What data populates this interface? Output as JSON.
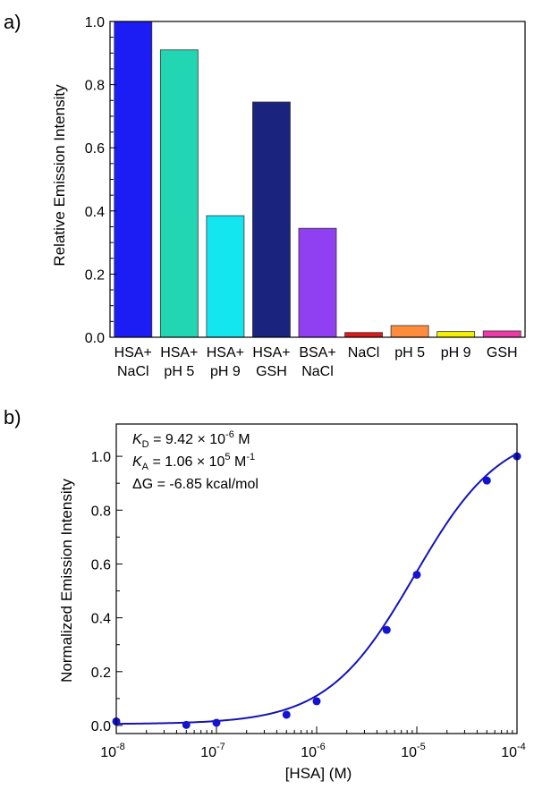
{
  "chart_data": [
    {
      "panel_label": "a)",
      "type": "bar",
      "title": "",
      "xlabel": "",
      "ylabel": "Relative Emission Intensity",
      "ylim": [
        0,
        1.0
      ],
      "yticks": [
        "0.0",
        "0.2",
        "0.4",
        "0.6",
        "0.8",
        "1.0"
      ],
      "categories": [
        [
          "HSA+",
          "NaCl"
        ],
        [
          "HSA+",
          "pH 5"
        ],
        [
          "HSA+",
          "pH 9"
        ],
        [
          "HSA+",
          "GSH"
        ],
        [
          "BSA+",
          "NaCl"
        ],
        [
          "NaCl"
        ],
        [
          "pH 5"
        ],
        [
          "pH 9"
        ],
        [
          "GSH"
        ]
      ],
      "values": [
        1.0,
        0.91,
        0.385,
        0.745,
        0.345,
        0.015,
        0.037,
        0.018,
        0.02
      ],
      "colors": [
        "#1c1cf5",
        "#22d6b4",
        "#14e6f0",
        "#1a237e",
        "#9040f0",
        "#e01818",
        "#ff8c3c",
        "#f5f000",
        "#ee3aa8"
      ]
    },
    {
      "panel_label": "b)",
      "type": "scatter",
      "title": "",
      "xlabel": "[HSA] (M)",
      "ylabel": "Normalized Emission Intensity",
      "xscale": "log",
      "xlim": [
        1e-08,
        0.0001
      ],
      "ylim": [
        -0.03,
        1.12
      ],
      "yticks": [
        "0.0",
        "0.2",
        "0.4",
        "0.6",
        "0.8",
        "1.0"
      ],
      "xtick_exponents": [
        "-8",
        "-7",
        "-6",
        "-5",
        "-4"
      ],
      "xtick_base": "10",
      "x": [
        1e-08,
        5e-08,
        1e-07,
        5e-07,
        1e-06,
        5e-06,
        1e-05,
        5e-05,
        0.0001
      ],
      "y": [
        0.015,
        0.002,
        0.01,
        0.04,
        0.09,
        0.355,
        0.56,
        0.91,
        1.0
      ],
      "fit_kd": 9.42e-06,
      "point_color": "#1414d0",
      "line_color": "#1414b4",
      "annotations": {
        "kd": {
          "symbol": "K",
          "subscript": "D",
          "text": " = 9.42 × 10",
          "exponent": "-6",
          "unit": " M"
        },
        "ka": {
          "symbol": "K",
          "subscript": "A",
          "text": " = 1.06 × 10",
          "exponent": "5",
          "unit": " M",
          "unit_exponent": "-1"
        },
        "dg": {
          "text": "ΔG = -6.85 kcal/mol"
        }
      }
    }
  ]
}
